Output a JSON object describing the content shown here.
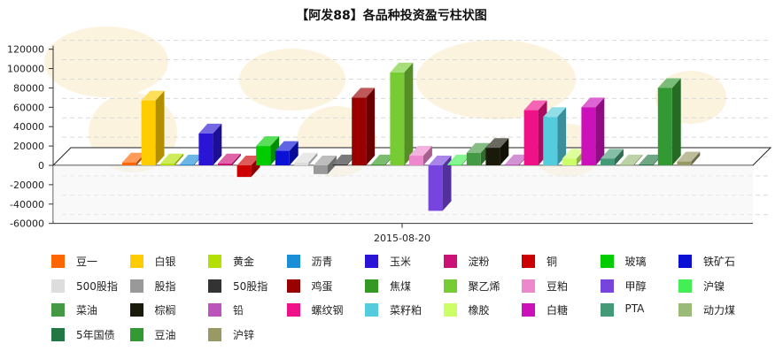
{
  "chart_data": {
    "type": "bar",
    "title": "【阿发88】各品种投资盈亏柱状图",
    "categories": [
      "2015-08-20"
    ],
    "xlabel": "",
    "ylabel": "",
    "ylim": [
      -60000,
      120000
    ],
    "yticks": [
      "120000",
      "100000",
      "80000",
      "60000",
      "40000",
      "20000",
      "0",
      "-20000",
      "-40000",
      "-60000"
    ],
    "grid": true,
    "legend_position": "bottom",
    "series": [
      {
        "name": "豆一",
        "value": 3000,
        "color": "#ff6600"
      },
      {
        "name": "白银",
        "value": 67000,
        "color": "#ffcc00"
      },
      {
        "name": "黄金",
        "value": 2000,
        "color": "#b3e000"
      },
      {
        "name": "沥青",
        "value": 1000,
        "color": "#1a8fd8"
      },
      {
        "name": "玉米",
        "value": 33000,
        "color": "#2a14d6"
      },
      {
        "name": "淀粉",
        "value": 2000,
        "color": "#cc1177"
      },
      {
        "name": "铜",
        "value": -12000,
        "color": "#cc0000"
      },
      {
        "name": "玻璃",
        "value": 20000,
        "color": "#00cc00"
      },
      {
        "name": "铁矿石",
        "value": 15000,
        "color": "#0a10d6"
      },
      {
        "name": "500股指",
        "value": 3000,
        "color": "#dddddd"
      },
      {
        "name": "股指",
        "value": -9000,
        "color": "#999999"
      },
      {
        "name": "50股指",
        "value": 1000,
        "color": "#333333"
      },
      {
        "name": "鸡蛋",
        "value": 70000,
        "color": "#990000"
      },
      {
        "name": "焦煤",
        "value": 1000,
        "color": "#339922"
      },
      {
        "name": "聚乙烯",
        "value": 96000,
        "color": "#77cc33"
      },
      {
        "name": "豆粕",
        "value": 10000,
        "color": "#ee88cc"
      },
      {
        "name": "甲醇",
        "value": -47000,
        "color": "#7744dd"
      },
      {
        "name": "沪镍",
        "value": 1000,
        "color": "#44ee55"
      },
      {
        "name": "菜油",
        "value": 13000,
        "color": "#449944"
      },
      {
        "name": "棕榈",
        "value": 18000,
        "color": "#1a1a0a"
      },
      {
        "name": "铅",
        "value": 1000,
        "color": "#bb55bb"
      },
      {
        "name": "螺纹钢",
        "value": 57000,
        "color": "#ee1188"
      },
      {
        "name": "菜籽粕",
        "value": 50000,
        "color": "#55ccdd"
      },
      {
        "name": "橡胶",
        "value": 7000,
        "color": "#ccff66"
      },
      {
        "name": "白糖",
        "value": 60000,
        "color": "#cc11bb"
      },
      {
        "name": "PTA",
        "value": 7000,
        "color": "#449977"
      },
      {
        "name": "动力煤",
        "value": 1000,
        "color": "#99bb77"
      },
      {
        "name": "5年国债",
        "value": 1000,
        "color": "#227744"
      },
      {
        "name": "豆油",
        "value": 80000,
        "color": "#339933"
      },
      {
        "name": "沪锌",
        "value": 4000,
        "color": "#999966"
      }
    ]
  }
}
